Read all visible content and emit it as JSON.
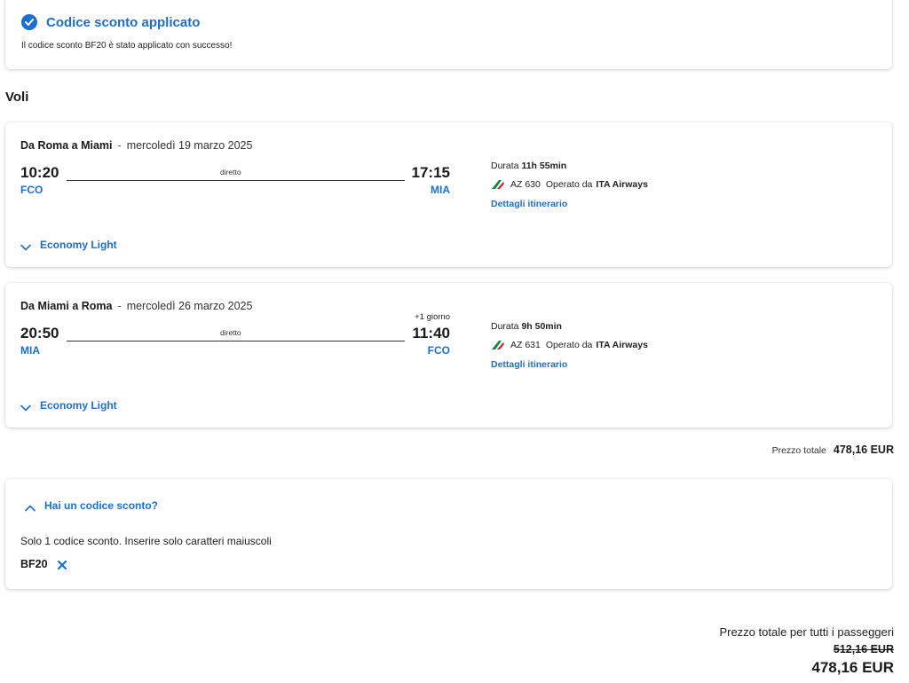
{
  "banner": {
    "title": "Codice sconto applicato",
    "message": "Il codice sconto BF20 è stato applicato con successo!",
    "icon": "check-circle-icon"
  },
  "section_title": "Voli",
  "flights": [
    {
      "route": "Da Roma a Miami",
      "separator": "-",
      "date": "mercoledì 19 marzo 2025",
      "dep_time": "10:20",
      "dep_code": "FCO",
      "arr_time": "17:15",
      "arr_code": "MIA",
      "stops": "diretto",
      "plus_day": "",
      "duration_label": "Durata",
      "duration": "11h 55min",
      "flight_number": "AZ 630",
      "operated_label": "Operato da",
      "carrier": "ITA Airways",
      "details_link": "Dettagli itinerario",
      "fare": "Economy Light"
    },
    {
      "route": "Da Miami a Roma",
      "separator": "-",
      "date": "mercoledì 26 marzo 2025",
      "dep_time": "20:50",
      "dep_code": "MIA",
      "arr_time": "11:40",
      "arr_code": "FCO",
      "stops": "diretto",
      "plus_day": "+1 giorno",
      "duration_label": "Durata",
      "duration": "9h 50min",
      "flight_number": "AZ 631",
      "operated_label": "Operato da",
      "carrier": "ITA Airways",
      "details_link": "Dettagli itinerario",
      "fare": "Economy Light"
    }
  ],
  "total": {
    "label": "Prezzo totale",
    "value": "478,16 EUR"
  },
  "discount": {
    "toggle": "Hai un codice sconto?",
    "note": "Solo 1 codice sconto. Inserire solo caratteri maiuscoli",
    "code": "BF20"
  },
  "grand_total": {
    "label": "Prezzo totale per tutti i passeggeri",
    "old_price": "512,16 EUR",
    "new_price": "478,16 EUR"
  },
  "colors": {
    "accent": "#1b6fd1",
    "airline_green": "#0a8a3a",
    "airline_red": "#d1202b"
  }
}
